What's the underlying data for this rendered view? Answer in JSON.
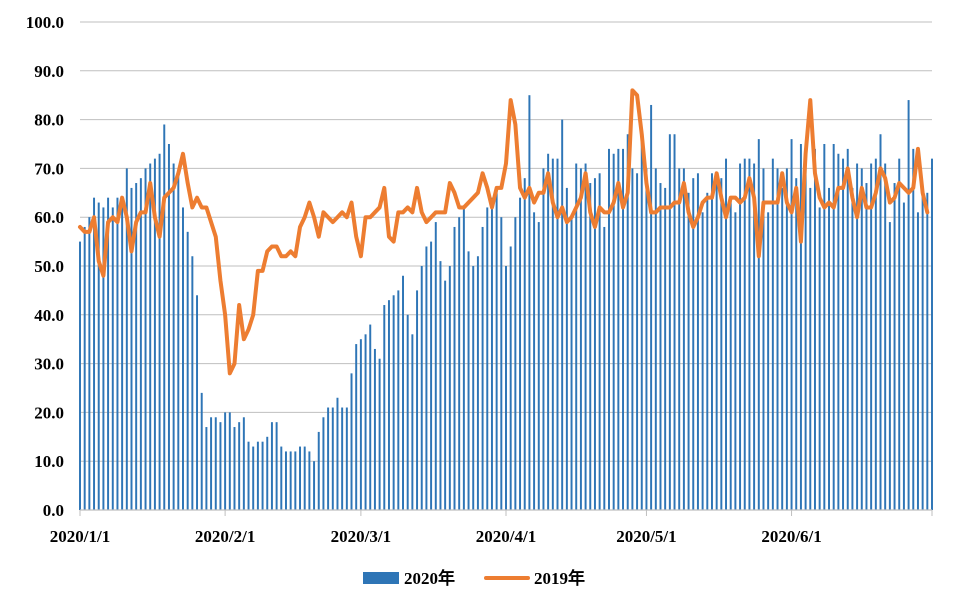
{
  "chart_data": {
    "type": "bar+line",
    "title": "",
    "xlabel": "",
    "ylabel": "",
    "ylim": [
      0,
      100
    ],
    "yticks": [
      "0.0",
      "10.0",
      "20.0",
      "30.0",
      "40.0",
      "50.0",
      "60.0",
      "70.0",
      "80.0",
      "90.0",
      "100.0"
    ],
    "ytick_values": [
      0,
      10,
      20,
      30,
      40,
      50,
      60,
      70,
      80,
      90,
      100
    ],
    "x_ticks": [
      {
        "day": 0,
        "label": "2020/1/1"
      },
      {
        "day": 31,
        "label": "2020/2/1"
      },
      {
        "day": 60,
        "label": "2020/3/1"
      },
      {
        "day": 91,
        "label": "2020/4/1"
      },
      {
        "day": 121,
        "label": "2020/5/1"
      },
      {
        "day": 152,
        "label": "2020/6/1"
      }
    ],
    "x_count": 183,
    "legend": {
      "position": "bottom",
      "entries": [
        "2020年",
        "2019年"
      ]
    },
    "series": [
      {
        "name": "2020年",
        "type": "bar",
        "color": "#2e75b6",
        "values": [
          55,
          58,
          60,
          64,
          63,
          62,
          64,
          62,
          64,
          64,
          70,
          66,
          67,
          68,
          70,
          71,
          72,
          73,
          79,
          75,
          71,
          69,
          62,
          57,
          52,
          44,
          24,
          17,
          19,
          19,
          18,
          20,
          20,
          17,
          18,
          19,
          14,
          13,
          14,
          14,
          15,
          18,
          18,
          13,
          12,
          12,
          12,
          13,
          13,
          12,
          10,
          16,
          19,
          21,
          21,
          23,
          21,
          21,
          28,
          34,
          35,
          36,
          38,
          33,
          31,
          42,
          43,
          44,
          45,
          48,
          40,
          36,
          45,
          50,
          54,
          55,
          59,
          51,
          47,
          50,
          58,
          60,
          62,
          53,
          50,
          52,
          58,
          62,
          64,
          66,
          60,
          50,
          54,
          60,
          64,
          68,
          85,
          61,
          59,
          70,
          73,
          72,
          72,
          80,
          66,
          60,
          71,
          70,
          71,
          67,
          68,
          69,
          58,
          74,
          73,
          74,
          74,
          77,
          70,
          69,
          76,
          70,
          83,
          70,
          67,
          66,
          77,
          77,
          70,
          70,
          65,
          68,
          69,
          61,
          65,
          69,
          69,
          68,
          72,
          64,
          61,
          71,
          72,
          72,
          71,
          76,
          70,
          61,
          72,
          70,
          66,
          70,
          76,
          68,
          75,
          73,
          66,
          74,
          62,
          75,
          66,
          75,
          73,
          72,
          74,
          66,
          71,
          70,
          67,
          71,
          72,
          77,
          71,
          59,
          67,
          72,
          63,
          84,
          74,
          61,
          65,
          65,
          72
        ]
      },
      {
        "name": "2019年",
        "type": "line",
        "color": "#ed7d31",
        "values": [
          58,
          57,
          57,
          60,
          51,
          48,
          59,
          60,
          59,
          64,
          60,
          53,
          59,
          61,
          61,
          67,
          60,
          56,
          64,
          65,
          66,
          69,
          73,
          67,
          62,
          64,
          62,
          62,
          59,
          56,
          47,
          40,
          28,
          30,
          42,
          35,
          37,
          40,
          49,
          49,
          53,
          54,
          54,
          52,
          52,
          53,
          52,
          58,
          60,
          63,
          60,
          56,
          61,
          60,
          59,
          60,
          61,
          60,
          63,
          56,
          52,
          60,
          60,
          61,
          62,
          66,
          56,
          55,
          61,
          61,
          62,
          61,
          66,
          61,
          59,
          60,
          61,
          61,
          61,
          67,
          65,
          62,
          62,
          63,
          64,
          65,
          69,
          66,
          62,
          66,
          66,
          71,
          84,
          79,
          66,
          64,
          66,
          63,
          65,
          65,
          69,
          63,
          60,
          62,
          59,
          60,
          62,
          64,
          69,
          61,
          58,
          62,
          61,
          61,
          63,
          67,
          62,
          65,
          86,
          85,
          77,
          67,
          61,
          61,
          62,
          62,
          62,
          63,
          63,
          67,
          61,
          58,
          60,
          63,
          64,
          64,
          69,
          64,
          60,
          64,
          64,
          63,
          64,
          68,
          64,
          52,
          63,
          63,
          63,
          63,
          69,
          63,
          61,
          66,
          55,
          73,
          84,
          69,
          64,
          62,
          63,
          62,
          66,
          66,
          70,
          64,
          60,
          66,
          62,
          62,
          65,
          70,
          68,
          63,
          64,
          67,
          66,
          65,
          66,
          74,
          65,
          61
        ]
      }
    ]
  }
}
